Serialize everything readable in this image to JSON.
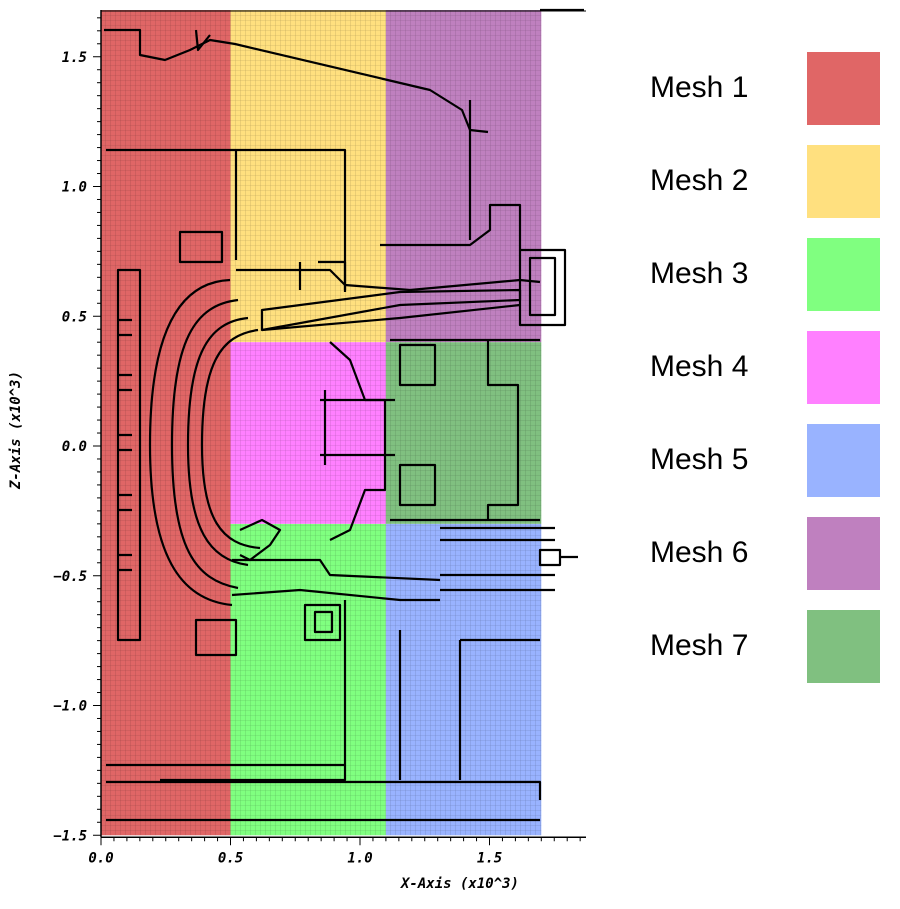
{
  "axes": {
    "x_title": "X-Axis (x10^3)",
    "y_title": "Z-Axis (x10^3)",
    "x_ticks": [
      {
        "v": 0.0,
        "label": "0.0"
      },
      {
        "v": 0.5,
        "label": "0.5"
      },
      {
        "v": 1.0,
        "label": "1.0"
      },
      {
        "v": 1.5,
        "label": "1.5"
      }
    ],
    "y_ticks": [
      {
        "v": 1.5,
        "label": "1.5"
      },
      {
        "v": 1.0,
        "label": "1.0"
      },
      {
        "v": 0.5,
        "label": "0.5"
      },
      {
        "v": 0.0,
        "label": "0.0"
      },
      {
        "v": -0.5,
        "label": "−0.5"
      },
      {
        "v": -1.0,
        "label": "−1.0"
      },
      {
        "v": -1.5,
        "label": "−1.5"
      }
    ],
    "xlim": [
      0,
      1.85
    ],
    "ylim": [
      -1.5,
      1.68
    ]
  },
  "meshes": [
    {
      "name": "Mesh 1",
      "color": "#e06666",
      "x": [
        0.0,
        0.5
      ],
      "z": [
        -1.5,
        1.68
      ]
    },
    {
      "name": "Mesh 2",
      "color": "#ffe07f",
      "x": [
        0.5,
        1.1
      ],
      "z": [
        0.4,
        1.68
      ]
    },
    {
      "name": "Mesh 3",
      "color": "#80ff80",
      "x": [
        0.5,
        1.1
      ],
      "z": [
        -1.5,
        -0.3
      ]
    },
    {
      "name": "Mesh 4",
      "color": "#ff80ff",
      "x": [
        0.5,
        1.1
      ],
      "z": [
        -0.3,
        0.4
      ]
    },
    {
      "name": "Mesh 5",
      "color": "#99b3ff",
      "x": [
        1.1,
        1.7
      ],
      "z": [
        -1.5,
        -0.3
      ]
    },
    {
      "name": "Mesh 6",
      "color": "#bf80bf",
      "x": [
        1.1,
        1.7
      ],
      "z": [
        0.4,
        1.68
      ]
    },
    {
      "name": "Mesh 7",
      "color": "#80c080",
      "x": [
        1.1,
        1.7
      ],
      "z": [
        -0.3,
        0.4
      ]
    }
  ]
}
